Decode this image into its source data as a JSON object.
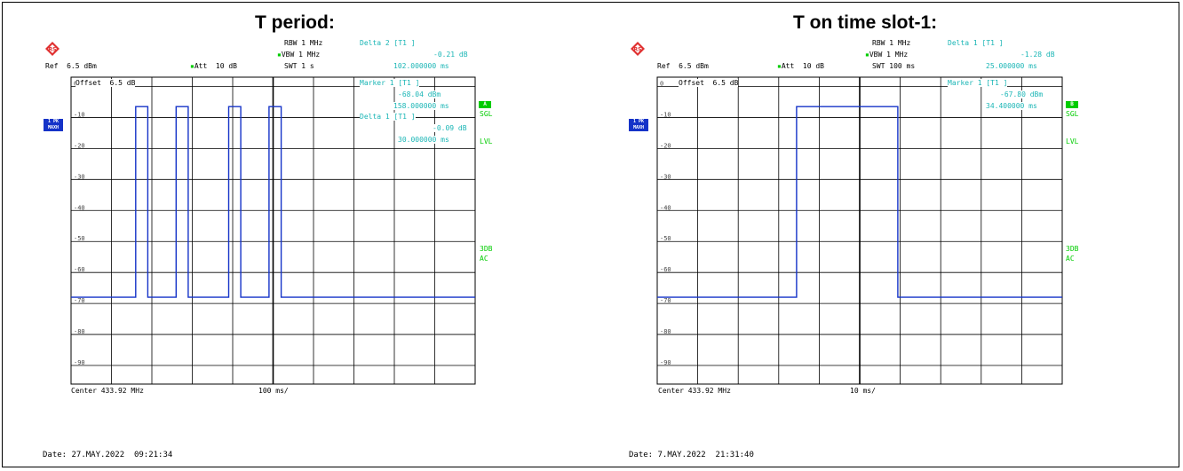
{
  "panels": [
    {
      "title": "T period:",
      "header": {
        "rbw": "RBW 1 MHz",
        "vbw": "VBW 1 MHz",
        "swt": "SWT 1 s",
        "ref": "Ref  6.5 dBm",
        "att": "Att  10 dB",
        "delta_title": "Delta 2 [T1 ]",
        "delta_db": "-0.21 dB",
        "delta_time": "102.000000 ms",
        "offset": "Offset  6.5 dB",
        "marker_title": "Marker 1 [T1 ]",
        "marker_dbm": "-68.04 dBm",
        "marker_time": "158.000000 ms",
        "delta1_title": "Delta 1 [T1 ]",
        "delta1_db": "-0.09 dB",
        "delta1_time": "30.000000 ms",
        "trace_label": "1 PK MAXH",
        "ind_top": "A",
        "ind_sgl": "SGL",
        "ind_lvl": "LVL",
        "ind_3db": "3DB",
        "ind_ac": "AC",
        "center": "Center 433.92 MHz",
        "span": "100 ms/",
        "date": "Date: 27.MAY.2022  09:21:34"
      }
    },
    {
      "title": "T on time slot-1:",
      "header": {
        "rbw": "RBW 1 MHz",
        "vbw": "VBW 1 MHz",
        "swt": "SWT 100 ms",
        "ref": "Ref  6.5 dBm",
        "att": "Att  10 dB",
        "delta_title": "Delta 1 [T1 ]",
        "delta_db": "-1.28 dB",
        "delta_time": "25.000000 ms",
        "offset": "Offset  6.5 dB",
        "marker_title": "Marker 1 [T1 ]",
        "marker_dbm": "-67.80 dBm",
        "marker_time": "34.400000 ms",
        "delta1_title": "",
        "delta1_db": "",
        "delta1_time": "",
        "trace_label": "1 PK MAXH",
        "ind_top": "B",
        "ind_sgl": "SGL",
        "ind_lvl": "LVL",
        "ind_3db": "3DB",
        "ind_ac": "AC",
        "center": "Center 433.92 MHz",
        "span": "10 ms/",
        "date": "Date: 7.MAY.2022  21:31:40"
      }
    }
  ],
  "chart_data": [
    {
      "type": "line",
      "title": "T period:",
      "xlabel": "",
      "ylabel": "",
      "x_unit": "ms",
      "y_unit": "dBm",
      "xlim": [
        0,
        1000
      ],
      "ylim": [
        -96,
        3
      ],
      "y_ticks": [
        0,
        -10,
        -20,
        -30,
        -40,
        -50,
        -60,
        -70,
        -80,
        -90
      ],
      "y_tick_labels": [
        "0",
        "-10",
        "-20",
        "-30",
        "-40",
        "-50",
        "-60",
        "-70",
        "-80",
        "-90"
      ],
      "grid": true,
      "line_color": "#1533c8",
      "series": [
        {
          "name": "",
          "x": [
            0,
            160,
            160,
            190,
            190,
            260,
            260,
            290,
            290,
            390,
            390,
            420,
            420,
            490,
            490,
            520,
            520,
            1000
          ],
          "y": [
            -68,
            -68,
            -6.5,
            -6.5,
            -68,
            -68,
            -6.5,
            -6.5,
            -68,
            -68,
            -6.5,
            -6.5,
            -68,
            -68,
            -6.5,
            -6.5,
            -68,
            -68
          ]
        }
      ]
    },
    {
      "type": "line",
      "title": "T on time slot-1:",
      "xlabel": "",
      "ylabel": "",
      "x_unit": "ms",
      "y_unit": "dBm",
      "xlim": [
        0,
        100
      ],
      "ylim": [
        -96,
        3
      ],
      "y_ticks": [
        0,
        -10,
        -20,
        -30,
        -40,
        -50,
        -60,
        -70,
        -80,
        -90
      ],
      "y_tick_labels": [
        "0",
        "-10",
        "-20",
        "-30",
        "-40",
        "-50",
        "-60",
        "-70",
        "-80",
        "-90"
      ],
      "grid": true,
      "line_color": "#1533c8",
      "series": [
        {
          "name": "",
          "x": [
            0,
            34.4,
            34.4,
            59.4,
            59.4,
            100
          ],
          "y": [
            -68,
            -68,
            -6.5,
            -6.5,
            -68,
            -68
          ]
        }
      ]
    }
  ]
}
